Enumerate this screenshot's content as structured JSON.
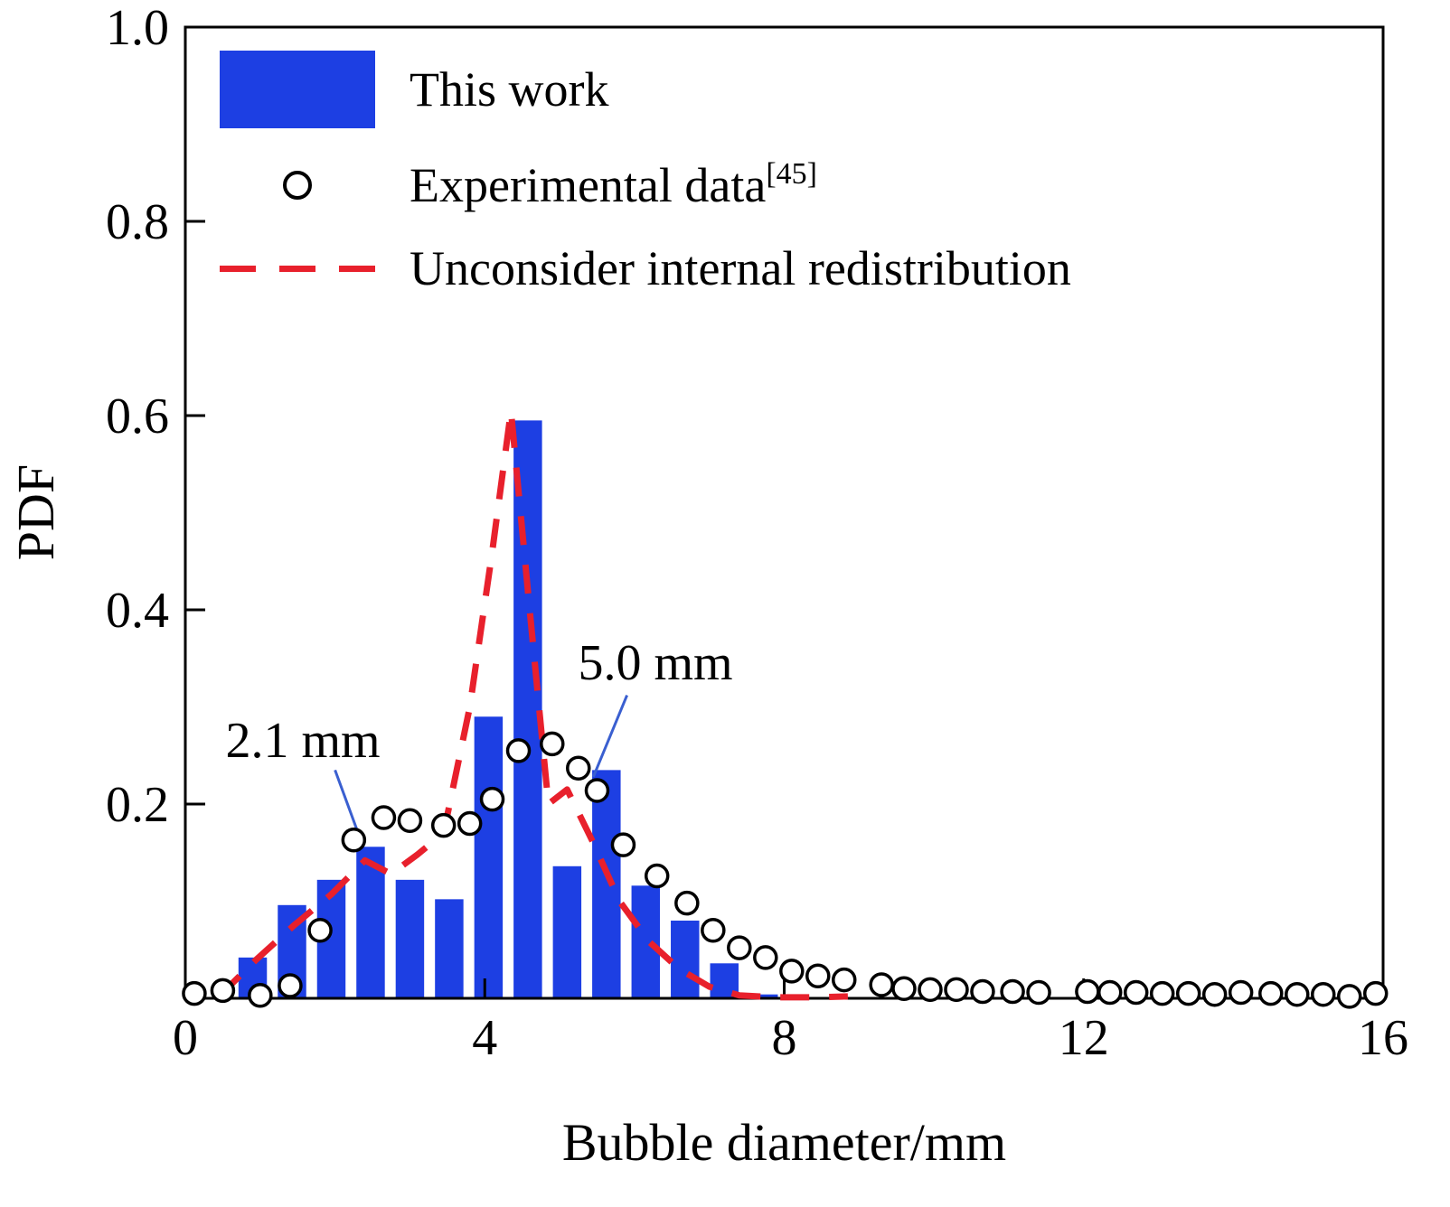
{
  "figure": {
    "background": "#ffffff"
  },
  "legend": {
    "items": [
      {
        "type": "bar-swatch",
        "label": "This work",
        "color": "#1d3fe3"
      },
      {
        "type": "circle-marker",
        "label": "Experimental data",
        "label_sup": "[45]"
      },
      {
        "type": "dashed-line",
        "label": "Unconsider internal redistribution",
        "color": "#e8202c"
      }
    ]
  },
  "chart_data": {
    "type": "bar",
    "title": "",
    "xlabel": "Bubble diameter/mm",
    "ylabel": "PDF",
    "xlim": [
      0,
      16
    ],
    "ylim": [
      0,
      1.0
    ],
    "xticks": [
      0,
      4,
      8,
      12,
      16
    ],
    "xtick_labels": [
      "0",
      "4",
      "8",
      "12",
      "16"
    ],
    "yticks": [
      0.2,
      0.4,
      0.6,
      0.8,
      1.0
    ],
    "ytick_labels": [
      "0.2",
      "0.4",
      "0.6",
      "0.8",
      "1.0"
    ],
    "grid": false,
    "legend_position": "upper-left",
    "series": [
      {
        "name": "This work",
        "type": "bar",
        "color": "#1d3fe3",
        "bar_width": 0.38,
        "x": [
          0.9,
          1.425,
          1.95,
          2.475,
          3.0,
          3.525,
          4.05,
          4.575,
          5.1,
          5.625,
          6.15,
          6.675,
          7.2,
          7.725
        ],
        "y": [
          0.042,
          0.096,
          0.122,
          0.156,
          0.122,
          0.102,
          0.29,
          0.595,
          0.136,
          0.235,
          0.116,
          0.08,
          0.036,
          0.004
        ]
      },
      {
        "name": "Experimental data[45]",
        "type": "scatter",
        "marker": "open-circle",
        "color": "#000000",
        "x": [
          0.12,
          0.5,
          1.0,
          1.4,
          1.8,
          2.25,
          2.65,
          3.0,
          3.45,
          3.8,
          4.1,
          4.45,
          4.9,
          5.25,
          5.5,
          5.85,
          6.3,
          6.7,
          7.05,
          7.4,
          7.75,
          8.1,
          8.45,
          8.8,
          9.3,
          9.6,
          9.95,
          10.3,
          10.65,
          11.05,
          11.4,
          12.05,
          12.35,
          12.7,
          13.05,
          13.4,
          13.75,
          14.1,
          14.5,
          14.85,
          15.2,
          15.55,
          15.9
        ],
        "y": [
          0.005,
          0.008,
          0.003,
          0.013,
          0.07,
          0.163,
          0.186,
          0.183,
          0.178,
          0.18,
          0.205,
          0.255,
          0.262,
          0.237,
          0.214,
          0.158,
          0.126,
          0.098,
          0.07,
          0.052,
          0.042,
          0.028,
          0.023,
          0.019,
          0.014,
          0.01,
          0.009,
          0.009,
          0.007,
          0.007,
          0.006,
          0.007,
          0.006,
          0.006,
          0.005,
          0.005,
          0.004,
          0.006,
          0.005,
          0.004,
          0.004,
          0.002,
          0.005
        ]
      },
      {
        "name": "Unconsider internal redistribution",
        "type": "line",
        "style": "dashed",
        "color": "#e8202c",
        "x": [
          0.45,
          0.95,
          1.45,
          1.95,
          2.4,
          2.75,
          3.1,
          3.45,
          3.8,
          4.1,
          4.35,
          4.6,
          4.85,
          5.1,
          5.45,
          5.8,
          6.2,
          6.6,
          7.0,
          7.4,
          7.9,
          8.4,
          8.85
        ],
        "y": [
          0.002,
          0.04,
          0.075,
          0.107,
          0.142,
          0.128,
          0.148,
          0.17,
          0.3,
          0.46,
          0.605,
          0.4,
          0.2,
          0.215,
          0.16,
          0.1,
          0.058,
          0.03,
          0.012,
          0.003,
          0.001,
          0.001,
          0.002
        ]
      }
    ],
    "annotations": [
      {
        "text": "2.1 mm",
        "text_xy": [
          1.57,
          0.265
        ],
        "arrow_from": [
          2.0,
          0.235
        ],
        "arrow_to": [
          2.3,
          0.172
        ]
      },
      {
        "text": "5.0 mm",
        "text_xy": [
          6.28,
          0.345
        ],
        "arrow_from": [
          5.9,
          0.312
        ],
        "arrow_to": [
          5.45,
          0.228
        ]
      }
    ]
  }
}
